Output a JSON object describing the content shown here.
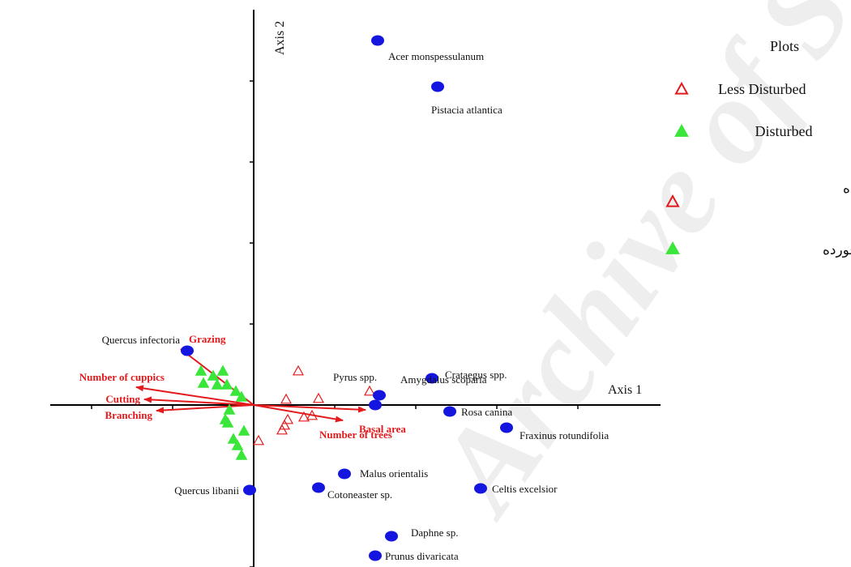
{
  "chart_data": {
    "type": "scatter",
    "xlabel": "Axis 1",
    "ylabel": "Axis 2",
    "xlim": [
      -2.5,
      5.0
    ],
    "ylim": [
      -2.0,
      4.7
    ],
    "colors": {
      "species": "#1515e0",
      "less_disturbed": "#e31a1c",
      "disturbed": "#39e639",
      "vectors": "#e31a1c",
      "axis": "#000000"
    },
    "species": [
      {
        "name": "Acer monspessulanum",
        "x": 1.53,
        "y": 4.5
      },
      {
        "name": "Pistacia atlantica",
        "x": 2.27,
        "y": 3.93
      },
      {
        "name": "Quercus infectoria",
        "x": -0.82,
        "y": 0.67
      },
      {
        "name": "Crataegus spp.",
        "x": 2.2,
        "y": 0.33
      },
      {
        "name": "Pyrus spp.",
        "x": 1.5,
        "y": 0.0
      },
      {
        "name": "Amygdalus scoparia",
        "x": 1.55,
        "y": 0.12
      },
      {
        "name": "Rosa canina",
        "x": 2.42,
        "y": -0.08
      },
      {
        "name": "Fraxinus rotundifolia",
        "x": 3.12,
        "y": -0.28
      },
      {
        "name": "Malus orientalis",
        "x": 1.12,
        "y": -0.85
      },
      {
        "name": "Cotoneaster sp.",
        "x": 0.8,
        "y": -1.02
      },
      {
        "name": "Celtis excelsior",
        "x": 2.8,
        "y": -1.03
      },
      {
        "name": "Quercus libanii",
        "x": -0.05,
        "y": -1.05
      },
      {
        "name": "Daphne sp.",
        "x": 1.7,
        "y": -1.62
      },
      {
        "name": "Prunus divaricata",
        "x": 1.5,
        "y": -1.86
      }
    ],
    "plots_less_disturbed": [
      {
        "x": 0.55,
        "y": 0.42
      },
      {
        "x": 0.4,
        "y": 0.07
      },
      {
        "x": 0.8,
        "y": 0.08
      },
      {
        "x": 1.43,
        "y": 0.17
      },
      {
        "x": 0.42,
        "y": -0.18
      },
      {
        "x": 0.38,
        "y": -0.25
      },
      {
        "x": 0.35,
        "y": -0.31
      },
      {
        "x": 0.62,
        "y": -0.15
      },
      {
        "x": 0.72,
        "y": -0.13
      },
      {
        "x": 0.06,
        "y": -0.44
      }
    ],
    "plots_disturbed": [
      {
        "x": -0.65,
        "y": 0.42
      },
      {
        "x": -0.5,
        "y": 0.36
      },
      {
        "x": -0.38,
        "y": 0.42
      },
      {
        "x": -0.62,
        "y": 0.27
      },
      {
        "x": -0.45,
        "y": 0.25
      },
      {
        "x": -0.33,
        "y": 0.25
      },
      {
        "x": -0.22,
        "y": 0.17
      },
      {
        "x": -0.15,
        "y": 0.1
      },
      {
        "x": -0.3,
        "y": -0.06
      },
      {
        "x": -0.35,
        "y": -0.18
      },
      {
        "x": -0.32,
        "y": -0.22
      },
      {
        "x": -0.12,
        "y": -0.32
      },
      {
        "x": -0.25,
        "y": -0.42
      },
      {
        "x": -0.2,
        "y": -0.5
      },
      {
        "x": -0.15,
        "y": -0.62
      }
    ],
    "vectors": [
      {
        "name": "Grazing",
        "x": -0.9,
        "y": 0.69
      },
      {
        "name": "Number of cuppics",
        "x": -1.45,
        "y": 0.22
      },
      {
        "name": "Cutting",
        "x": -1.35,
        "y": 0.07
      },
      {
        "name": "Branching",
        "x": -1.2,
        "y": -0.07
      },
      {
        "name": "Basal area",
        "x": 1.38,
        "y": -0.06
      },
      {
        "name": "Number of trees",
        "x": 1.1,
        "y": -0.19
      }
    ],
    "legend": {
      "title": "Plots",
      "position": "top-right",
      "items": [
        {
          "label": "Less Disturbed",
          "marker": "open-triangle"
        },
        {
          "label": "Disturbed",
          "marker": "filled-triangle"
        },
        {
          "label": "کمتر دست‌خورده",
          "marker": "open-triangle"
        },
        {
          "label": "دست‌خورده",
          "marker": "filled-triangle"
        }
      ]
    },
    "watermark": "Archive of SID"
  }
}
